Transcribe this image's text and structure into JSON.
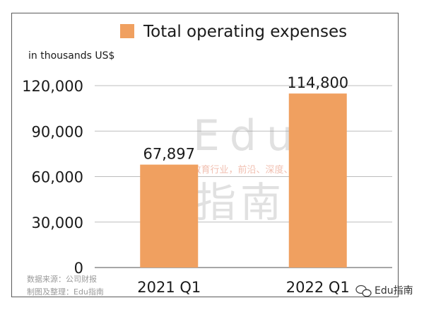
{
  "chart_data": {
    "type": "bar",
    "categories": [
      "2021 Q1",
      "2022 Q1"
    ],
    "series": [
      {
        "name": "Total operating expenses",
        "values": [
          67897,
          114800
        ]
      }
    ],
    "data_labels": [
      "67,897",
      "114,800"
    ],
    "ylabel": "in thousands US$",
    "ylim": [
      0,
      120000
    ],
    "yticks": [
      0,
      30000,
      60000,
      90000,
      120000
    ],
    "ytick_labels": [
      "0",
      "30,000",
      "60,000",
      "90,000",
      "120,000"
    ],
    "grid": true,
    "legend_position": "top-center",
    "bar_color": "#f0a060"
  },
  "watermark": {
    "line1": "Edu",
    "tagline": "教育行业，前沿、深度、独家",
    "line2": "指南"
  },
  "source": {
    "line1": "数据来源：公司财报",
    "line2": "制图及整理：Edu指南"
  },
  "brand": {
    "icon": "wechat-icon",
    "name": "Edu指南"
  }
}
